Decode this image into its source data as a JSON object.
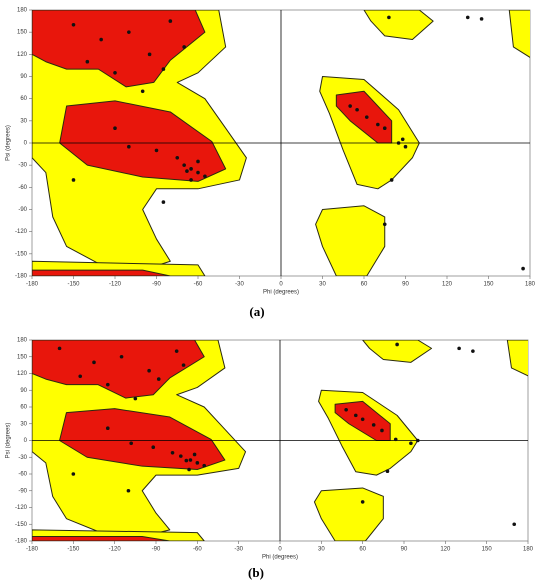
{
  "chart_data": [
    {
      "type": "scatter",
      "caption": "(a)",
      "xlabel": "Phi (degrees)",
      "ylabel": "Psi (degrees)",
      "x": [
        -150,
        -130,
        -110,
        -95,
        -80,
        -140,
        -70,
        -120,
        -100,
        -85,
        -65,
        -60,
        -70,
        -55,
        -75,
        -90,
        -120,
        -110,
        -60,
        -65,
        -68,
        50,
        55,
        62,
        70,
        75,
        85,
        90,
        80,
        -85,
        -150,
        135,
        145,
        175,
        75,
        88,
        78
      ],
      "y": [
        160,
        140,
        150,
        120,
        165,
        110,
        130,
        95,
        70,
        100,
        -35,
        -40,
        -30,
        -45,
        -20,
        -10,
        20,
        -5,
        -25,
        -50,
        -38,
        50,
        45,
        35,
        25,
        20,
        0,
        -5,
        -50,
        -80,
        -50,
        170,
        168,
        -170,
        -110,
        5,
        170
      ],
      "color": "#111111",
      "xlim": [
        -180,
        180
      ],
      "ylim": [
        -180,
        180
      ],
      "xticks": [
        -180,
        -150,
        -120,
        -90,
        -60,
        -30,
        0,
        30,
        60,
        90,
        120,
        150,
        180
      ],
      "yticks": [
        -180,
        -150,
        -120,
        -90,
        -60,
        -30,
        0,
        30,
        60,
        90,
        120,
        150,
        180
      ]
    },
    {
      "type": "scatter",
      "caption": "(b)",
      "xlabel": "Phi (degrees)",
      "ylabel": "Psi (degrees)",
      "x": [
        -160,
        -135,
        -115,
        -95,
        -75,
        -145,
        -70,
        -125,
        -105,
        -88,
        -65,
        -60,
        -72,
        -55,
        -78,
        -92,
        -125,
        -108,
        -62,
        -66,
        -68,
        48,
        55,
        60,
        68,
        74,
        84,
        95,
        78,
        -110,
        -150,
        130,
        140,
        170,
        60,
        100,
        85
      ],
      "y": [
        165,
        140,
        150,
        125,
        160,
        115,
        135,
        100,
        75,
        110,
        -35,
        -40,
        -28,
        -45,
        -22,
        -12,
        22,
        -5,
        -25,
        -52,
        -36,
        55,
        45,
        38,
        28,
        18,
        2,
        -5,
        -55,
        -90,
        -60,
        165,
        160,
        -150,
        -110,
        0,
        172
      ],
      "color": "#111111",
      "xlim": [
        -180,
        180
      ],
      "ylim": [
        -180,
        180
      ],
      "xticks": [
        -180,
        -150,
        -120,
        -90,
        -60,
        -30,
        0,
        30,
        60,
        90,
        120,
        150,
        180
      ],
      "yticks": [
        -180,
        -150,
        -120,
        -90,
        -60,
        -30,
        0,
        30,
        60,
        90,
        120,
        150,
        180
      ]
    }
  ]
}
